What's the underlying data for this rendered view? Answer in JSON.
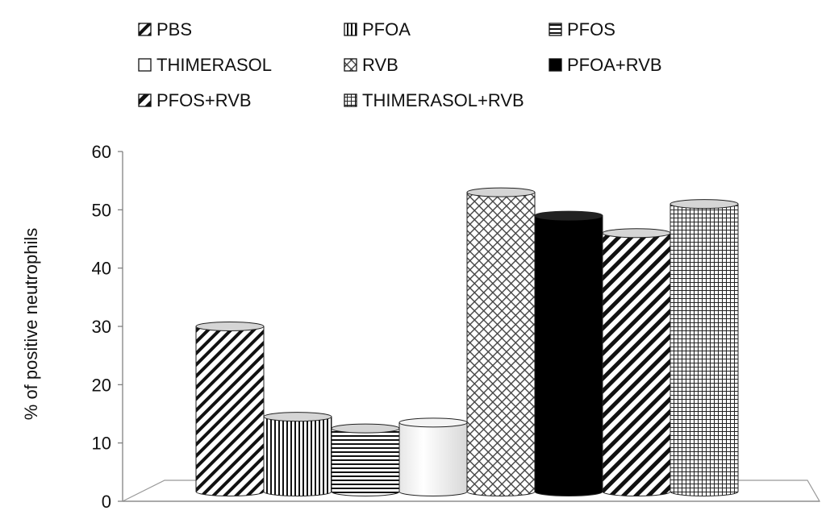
{
  "chart_data": {
    "type": "bar",
    "title": "",
    "xlabel": "",
    "ylabel": "% of positive neutrophils",
    "ylim": [
      0,
      60
    ],
    "yticks": [
      "0",
      "10",
      "20",
      "30",
      "40",
      "50",
      "60"
    ],
    "legend_position": "top",
    "grid": false,
    "series": [
      {
        "name": "PBS",
        "value": 30,
        "pattern": "diag-right",
        "color": "#000000"
      },
      {
        "name": "PFOA",
        "value": 14.5,
        "pattern": "vertical",
        "color": "#000000"
      },
      {
        "name": "PFOS",
        "value": 12.5,
        "pattern": "horizontal",
        "color": "#000000"
      },
      {
        "name": "THIMERASOL",
        "value": 13.5,
        "pattern": "white",
        "color": "#ffffff"
      },
      {
        "name": "RVB",
        "value": 53,
        "pattern": "crosshatch-diag",
        "color": "#000000"
      },
      {
        "name": "PFOA+RVB",
        "value": 49,
        "pattern": "solid",
        "color": "#000000"
      },
      {
        "name": "PFOS+RVB",
        "value": 46,
        "pattern": "diag-right-wide",
        "color": "#000000"
      },
      {
        "name": "THIMERASOL+RVB",
        "value": 51,
        "pattern": "grid",
        "color": "#000000"
      }
    ]
  }
}
